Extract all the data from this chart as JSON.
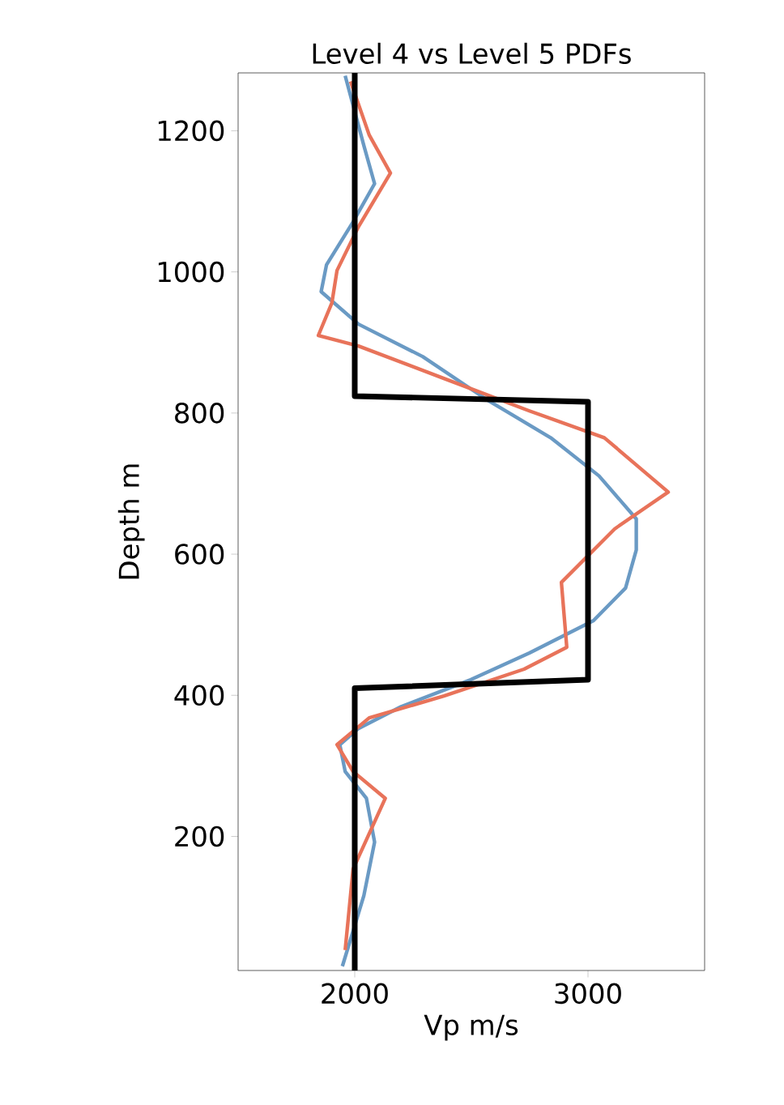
{
  "chart_data": {
    "type": "line",
    "title": "Level 4 vs Level 5 PDFs",
    "xlabel": "Vp m/s",
    "ylabel": "Depth m",
    "xlim": [
      1500,
      3500
    ],
    "xticks": [
      2000,
      3000
    ],
    "ylim": [
      10,
      1282
    ],
    "yticks": [
      200,
      400,
      600,
      800,
      1000,
      1200
    ],
    "grid": false,
    "series": [
      {
        "color": "#6a9ac4",
        "x": [
          1947,
          2039,
          2085,
          2050,
          1959,
          1936,
          2016,
          2199,
          2497,
          2749,
          3024,
          3161,
          3207,
          3207,
          3047,
          2840,
          2566,
          2291,
          2016,
          1856,
          1879,
          1993,
          2085,
          2039,
          1959
        ],
        "values": [
          16,
          116,
          192,
          254,
          292,
          330,
          353,
          384,
          422,
          460,
          506,
          552,
          606,
          650,
          711,
          765,
          819,
          880,
          926,
          972,
          1010,
          1071,
          1125,
          1179,
          1278
        ]
      },
      {
        "color": "#e8735a",
        "x": [
          1959,
          1993,
          2131,
          1993,
          1924,
          2062,
          2382,
          2726,
          2909,
          2886,
          3115,
          3344,
          3070,
          2749,
          2382,
          2016,
          1844,
          1902,
          1924,
          2016,
          2153,
          2062,
          1982
        ],
        "values": [
          39,
          154,
          254,
          292,
          330,
          368,
          399,
          437,
          468,
          560,
          636,
          688,
          765,
          803,
          849,
          895,
          910,
          956,
          1002,
          1064,
          1140,
          1194,
          1270
        ]
      },
      {
        "color": "#000000",
        "x": [
          2000,
          2000,
          3000,
          3000,
          2000,
          2000
        ],
        "values": [
          10,
          410,
          422,
          816,
          824,
          1282
        ]
      }
    ]
  }
}
